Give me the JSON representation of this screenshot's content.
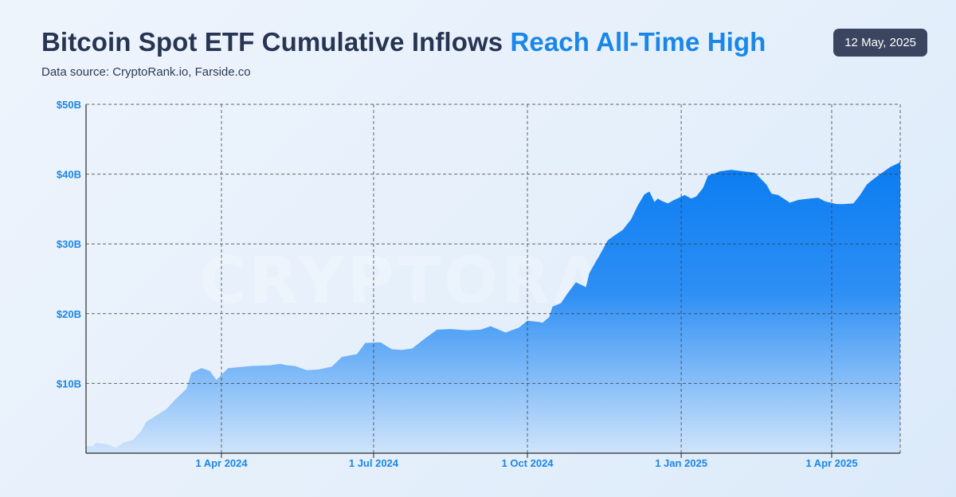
{
  "header": {
    "title_main": "Bitcoin Spot ETF Cumulative Inflows",
    "title_highlight": "Reach All-Time High",
    "subtitle": "Data source: CryptoRank.io, Farside.co",
    "date": "12 May, 2025",
    "watermark": "CRYPTORANK"
  },
  "colors": {
    "title": "#273553",
    "highlight": "#1a86e8",
    "axis_labels": "#1a86e8",
    "area_top": "#0a7cf2",
    "area_bottom": "#cfe4fb",
    "grid": "#3a3a3a"
  },
  "chart_data": {
    "type": "area",
    "title": "Bitcoin Spot ETF Cumulative Inflows Reach All-Time High",
    "xlabel": "",
    "ylabel": "",
    "xlim": [
      "2024-01-11",
      "2025-05-12"
    ],
    "ylim": [
      0,
      50
    ],
    "y_unit": "billion USD",
    "grid": true,
    "x_ticks": [
      {
        "date": "2024-04-01",
        "label": "1 Apr 2024"
      },
      {
        "date": "2024-07-01",
        "label": "1 Jul 2024"
      },
      {
        "date": "2024-10-01",
        "label": "1 Oct 2024"
      },
      {
        "date": "2025-01-01",
        "label": "1 Jan 2025"
      },
      {
        "date": "2025-04-01",
        "label": "1 Apr 2025"
      }
    ],
    "y_ticks": [
      {
        "value": 10,
        "label": "$10B"
      },
      {
        "value": 20,
        "label": "$20B"
      },
      {
        "value": 30,
        "label": "$30B"
      },
      {
        "value": 40,
        "label": "$40B"
      },
      {
        "value": 50,
        "label": "$50B"
      }
    ],
    "series": [
      {
        "x": [
          "2024-01-11",
          "2024-01-15",
          "2024-01-17",
          "2024-01-23",
          "2024-01-29",
          "2024-02-02",
          "2024-02-08",
          "2024-02-13",
          "2024-02-16",
          "2024-02-22",
          "2024-02-28",
          "2024-03-04",
          "2024-03-11",
          "2024-03-14",
          "2024-03-20",
          "2024-03-25",
          "2024-03-29",
          "2024-04-05",
          "2024-04-10",
          "2024-04-19",
          "2024-04-30",
          "2024-05-06",
          "2024-05-10",
          "2024-05-15",
          "2024-05-22",
          "2024-05-29",
          "2024-06-06",
          "2024-06-12",
          "2024-06-21",
          "2024-06-26",
          "2024-07-05",
          "2024-07-12",
          "2024-07-18",
          "2024-07-24",
          "2024-08-01",
          "2024-08-08",
          "2024-08-16",
          "2024-08-26",
          "2024-09-03",
          "2024-09-09",
          "2024-09-18",
          "2024-09-26",
          "2024-10-01",
          "2024-10-08",
          "2024-10-10",
          "2024-10-14",
          "2024-10-16",
          "2024-10-21",
          "2024-10-25",
          "2024-10-30",
          "2024-11-05",
          "2024-11-07",
          "2024-11-11",
          "2024-11-13",
          "2024-11-18",
          "2024-11-22",
          "2024-11-27",
          "2024-12-02",
          "2024-12-06",
          "2024-12-10",
          "2024-12-13",
          "2024-12-16",
          "2024-12-18",
          "2024-12-20",
          "2024-12-24",
          "2024-12-27",
          "2025-01-03",
          "2025-01-07",
          "2025-01-10",
          "2025-01-14",
          "2025-01-17",
          "2025-01-21",
          "2025-01-24",
          "2025-01-31",
          "2025-02-07",
          "2025-02-14",
          "2025-02-21",
          "2025-02-24",
          "2025-02-28",
          "2025-03-07",
          "2025-03-12",
          "2025-03-19",
          "2025-03-24",
          "2025-03-28",
          "2025-04-04",
          "2025-04-08",
          "2025-04-14",
          "2025-04-18",
          "2025-04-22",
          "2025-04-25",
          "2025-04-30",
          "2025-05-06",
          "2025-05-12"
        ],
        "values": [
          1.0,
          1.0,
          1.5,
          1.3,
          0.8,
          1.5,
          1.9,
          3.2,
          4.5,
          5.4,
          6.3,
          7.6,
          9.2,
          11.5,
          12.2,
          11.8,
          10.5,
          12.2,
          12.3,
          12.5,
          12.6,
          12.8,
          12.6,
          12.5,
          11.9,
          12.0,
          12.4,
          13.8,
          14.2,
          15.8,
          15.9,
          14.9,
          14.8,
          15.0,
          16.5,
          17.7,
          17.8,
          17.6,
          17.7,
          18.2,
          17.3,
          18.0,
          19.0,
          18.8,
          18.7,
          19.5,
          21.0,
          21.5,
          22.9,
          24.5,
          23.8,
          25.8,
          27.5,
          28.3,
          30.5,
          31.2,
          32.0,
          33.5,
          35.5,
          37.1,
          37.5,
          36.0,
          36.5,
          36.2,
          35.8,
          36.2,
          37.0,
          36.5,
          36.8,
          38.0,
          39.8,
          40.1,
          40.4,
          40.6,
          40.4,
          40.2,
          38.5,
          37.2,
          37.0,
          35.9,
          36.3,
          36.5,
          36.6,
          36.1,
          35.7,
          35.7,
          35.8,
          37.0,
          38.5,
          39.1,
          40.0,
          41.0,
          41.7
        ]
      }
    ]
  }
}
